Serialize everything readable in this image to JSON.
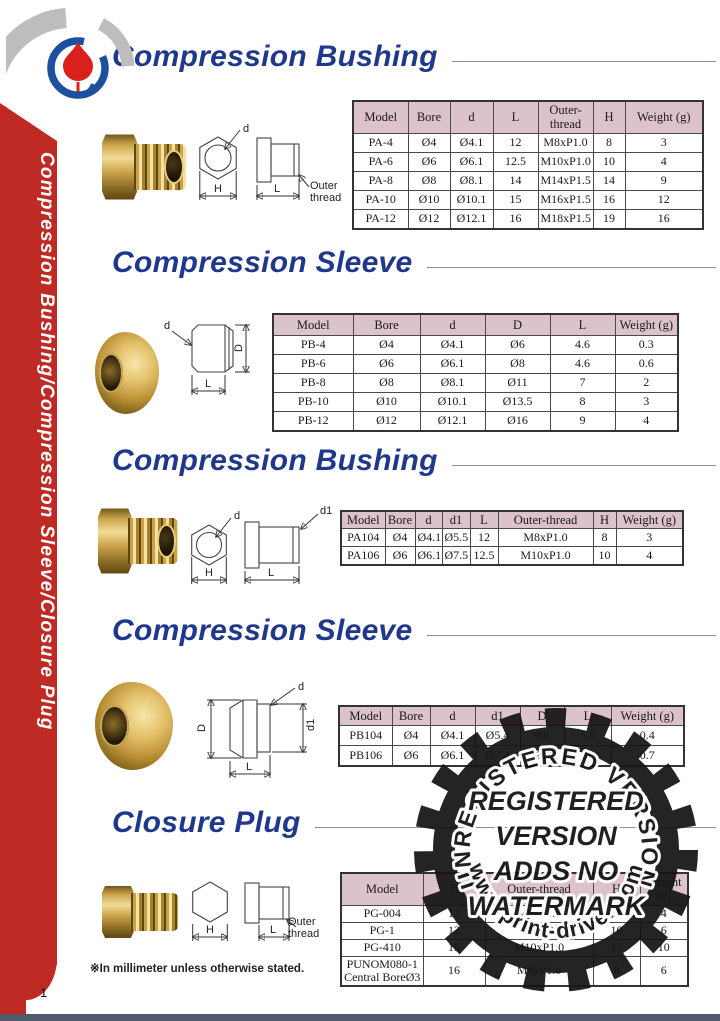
{
  "page": {
    "number": "1",
    "footnote": "※In millimeter unless otherwise stated.",
    "sidebar_text": "Compression Bushing/Compression Sleeve/Closure Plug"
  },
  "colors": {
    "accent_red": "#bf2b24",
    "title_blue": "#20388c",
    "table_header_pink": "#dcc2ca",
    "brass_gold": "#d9b35c"
  },
  "sections": [
    {
      "title": "Compression Bushing",
      "drawing": {
        "d": "d",
        "H": "H",
        "L": "L",
        "outer": "Outer thread"
      },
      "table": {
        "headers": [
          "Model",
          "Bore",
          "d",
          "L",
          "Outer-thread",
          "H",
          "Weight (g)"
        ],
        "rows": [
          [
            "PA-4",
            "Ø4",
            "Ø4.1",
            "12",
            "M8xP1.0",
            "8",
            "3"
          ],
          [
            "PA-6",
            "Ø6",
            "Ø6.1",
            "12.5",
            "M10xP1.0",
            "10",
            "4"
          ],
          [
            "PA-8",
            "Ø8",
            "Ø8.1",
            "14",
            "M14xP1.5",
            "14",
            "9"
          ],
          [
            "PA-10",
            "Ø10",
            "Ø10.1",
            "15",
            "M16xP1.5",
            "16",
            "12"
          ],
          [
            "PA-12",
            "Ø12",
            "Ø12.1",
            "16",
            "M18xP1.5",
            "19",
            "16"
          ]
        ]
      }
    },
    {
      "title": "Compression Sleeve",
      "drawing": {
        "d": "d",
        "D": "D",
        "L": "L"
      },
      "table": {
        "headers": [
          "Model",
          "Bore",
          "d",
          "D",
          "L",
          "Weight (g)"
        ],
        "rows": [
          [
            "PB-4",
            "Ø4",
            "Ø4.1",
            "Ø6",
            "4.6",
            "0.3"
          ],
          [
            "PB-6",
            "Ø6",
            "Ø6.1",
            "Ø8",
            "4.6",
            "0.6"
          ],
          [
            "PB-8",
            "Ø8",
            "Ø8.1",
            "Ø11",
            "7",
            "2"
          ],
          [
            "PB-10",
            "Ø10",
            "Ø10.1",
            "Ø13.5",
            "8",
            "3"
          ],
          [
            "PB-12",
            "Ø12",
            "Ø12.1",
            "Ø16",
            "9",
            "4"
          ]
        ]
      }
    },
    {
      "title": "Compression Bushing",
      "drawing": {
        "d": "d",
        "d1": "d1",
        "H": "H",
        "L": "L"
      },
      "table": {
        "headers": [
          "Model",
          "Bore",
          "d",
          "d1",
          "L",
          "Outer-thread",
          "H",
          "Weight (g)"
        ],
        "rows": [
          [
            "PA104",
            "Ø4",
            "Ø4.1",
            "Ø5.5",
            "12",
            "M8xP1.0",
            "8",
            "3"
          ],
          [
            "PA106",
            "Ø6",
            "Ø6.1",
            "Ø7.5",
            "12.5",
            "M10xP1.0",
            "10",
            "4"
          ]
        ]
      }
    },
    {
      "title": "Compression Sleeve",
      "drawing": {
        "d": "d",
        "d1": "d1",
        "D": "D",
        "L": "L"
      },
      "table": {
        "headers": [
          "Model",
          "Bore",
          "d",
          "d1",
          "D",
          "L",
          "Weight (g)"
        ],
        "rows": [
          [
            "PB104",
            "Ø4",
            "Ø4.1",
            "Ø5.4",
            "Ø6",
            "5.5",
            "0.4"
          ],
          [
            "PB106",
            "Ø6",
            "Ø6.1",
            "Ø7.4",
            "Ø8",
            "6",
            "0.7"
          ]
        ]
      }
    },
    {
      "title": "Closure Plug",
      "drawing": {
        "H": "H",
        "L": "L",
        "outer": "Outer thread"
      },
      "table": {
        "headers": [
          "Model",
          "L",
          "Outer-thread",
          "H",
          "Weight (g)"
        ],
        "rows": [
          [
            "PG-004",
            "12",
            "M8xP1.0",
            "8",
            "4"
          ],
          [
            "PG-1",
            "12",
            "PT1/8",
            "10",
            "6"
          ],
          [
            "PG-410",
            "15",
            "M10xP1.0",
            "12",
            "10"
          ],
          [
            "PUNOM080-1\nCentral BoreØ3",
            "16",
            "M8xP1.0",
            "8",
            "6"
          ]
        ]
      }
    }
  ],
  "watermark": {
    "arc_top": "UNREGISTERED VERSION",
    "center": [
      "REGISTERED",
      "VERSION",
      "ADDS NO",
      "WATERMARK"
    ],
    "arc_bottom": "www.print-driver.com"
  }
}
